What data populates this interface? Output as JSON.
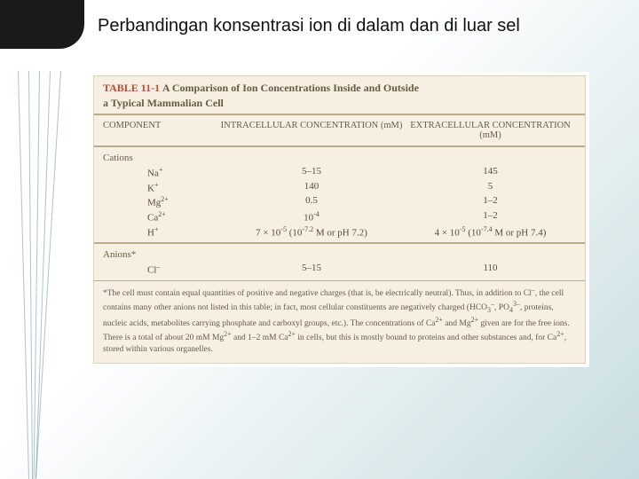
{
  "title": "Perbandingan konsentrasi ion di dalam dan di luar sel",
  "table": {
    "label": "TABLE 11-1",
    "caption_line1": "A Comparison of Ion Concentrations Inside and Outside",
    "caption_line2": "a Typical Mammalian Cell",
    "headers": {
      "component": "COMPONENT",
      "intra": "INTRACELLULAR CONCENTRATION (mM)",
      "extra": "EXTRACELLULAR CONCENTRATION (mM)"
    },
    "cations_label": "Cations",
    "anions_label": "Anions*",
    "cations": [
      {
        "name": "Na+",
        "name_html": "Na<sup>+</sup>",
        "intra": "5–15",
        "extra": "145"
      },
      {
        "name": "K+",
        "name_html": "K<sup>+</sup>",
        "intra": "140",
        "extra": "5"
      },
      {
        "name": "Mg2+",
        "name_html": "Mg<sup>2+</sup>",
        "intra": "0.5",
        "extra": "1–2"
      },
      {
        "name": "Ca2+",
        "name_html": "Ca<sup>2+</sup>",
        "intra_html": "10<sup>-4</sup>",
        "extra": "1–2"
      },
      {
        "name": "H+",
        "name_html": "H<sup>+</sup>",
        "intra_html": "7 × 10<sup>-5</sup> (10<sup>-7.2</sup> M or pH 7.2)",
        "extra_html": "4 × 10<sup>-5</sup> (10<sup>-7.4</sup> M or pH 7.4)"
      }
    ],
    "anions": [
      {
        "name": "Cl-",
        "name_html": "Cl<sup>–</sup>",
        "intra": "5–15",
        "extra": "110"
      }
    ],
    "footnote_html": "*The cell must contain equal quantities of positive and negative charges (that is, be electrically neutral). Thus, in addition to Cl<sup>–</sup>, the cell contains many other anions not listed in this table; in fact, most cellular constituents are negatively charged (HCO<sub>3</sub><sup>–</sup>, PO<sub>4</sub><sup>3–</sup>, proteins, nucleic acids, metabolites carrying phosphate and carboxyl groups, etc.). The concentrations of Ca<sup>2+</sup> and Mg<sup>2+</sup> given are for the free ions. There is a total of about 20 mM Mg<sup>2+</sup> and 1–2 mM Ca<sup>2+</sup> in cells, but this is mostly bound to proteins and other substances and, for Ca<sup>2+</sup>, stored within various organelles."
  },
  "colors": {
    "accent": "#1a1a1a",
    "table_bg": "#f6efe2",
    "table_label": "#c24a3a",
    "rule": "#b9ab8d",
    "text": "#6a5a45"
  }
}
